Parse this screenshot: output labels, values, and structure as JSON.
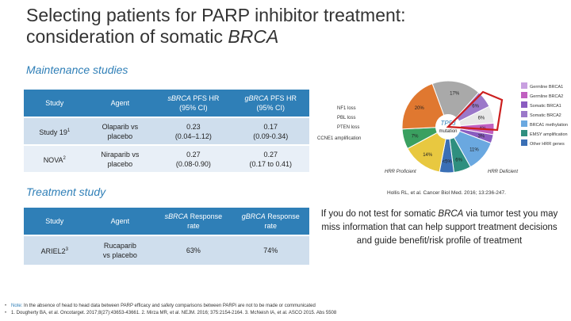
{
  "title": {
    "line1": "Selecting patients for PARP inhibitor treatment:",
    "line2_prefix": "consideration of somatic ",
    "line2_gene": "BRCA"
  },
  "maintenance": {
    "heading": "Maintenance studies",
    "headers": {
      "study": "Study",
      "agent": "Agent",
      "s_gene": "sBRCA",
      "s_rest": " PFS HR",
      "s_ci": "(95% CI)",
      "g_gene": "gBRCA",
      "g_rest": " PFS HR",
      "g_ci": "(95% CI)"
    },
    "rows": [
      {
        "study": "Study 19",
        "sup": "1",
        "agent1": "Olaparib vs",
        "agent2": "placebo",
        "s1": "0.23",
        "s2": "(0.04–1.12)",
        "g1": "0.17",
        "g2": "(0.09-0.34)"
      },
      {
        "study": "NOVA",
        "sup": "2",
        "agent1": "Niraparib vs",
        "agent2": "placebo",
        "s1": "0.27",
        "s2": "(0.08-0.90)",
        "g1": "0.27",
        "g2": "(0.17 to 0.41)"
      }
    ]
  },
  "treatment": {
    "heading": "Treatment study",
    "headers": {
      "study": "Study",
      "agent": "Agent",
      "s_gene": "sBRCA",
      "s_rest": " Response",
      "s_2": "rate",
      "g_gene": "gBRCA",
      "g_rest": " Response",
      "g_2": "rate"
    },
    "rows": [
      {
        "study": "ARIEL2",
        "sup": "3",
        "agent1": "Rucaparib",
        "agent2": "vs placebo",
        "s": "63%",
        "g": "74%"
      }
    ]
  },
  "pie": {
    "segments": [
      {
        "label": "17%",
        "color": "#a9a9a9",
        "value": 17
      },
      {
        "label": "6%",
        "color": "#9b78c9",
        "value": 6
      },
      {
        "label": "6%",
        "color": "#e8e8e8",
        "value": 6
      },
      {
        "label": "4%",
        "color": "#c060c0",
        "value": 4
      },
      {
        "label": "3%",
        "color": "#8a5cc0",
        "value": 3
      },
      {
        "label": "11%",
        "color": "#6aa8e0",
        "value": 11
      },
      {
        "label": "6%",
        "color": "#2f8f7f",
        "value": 6
      },
      {
        "label": "<5%",
        "color": "#3a6fb5",
        "value": 5
      },
      {
        "label": "14%",
        "color": "#e8c840",
        "value": 14
      },
      {
        "label": "7%",
        "color": "#3aa060",
        "value": 7
      },
      {
        "label": "20%",
        "color": "#e07830",
        "value": 20
      }
    ],
    "center_top": "TP53",
    "center_bottom": "mutation",
    "left_labels": [
      "NF1 loss",
      "PBL loss",
      "PTEN loss",
      "CCNE1 amplification"
    ],
    "bottom_left": "HRR Proficient",
    "bottom_right": "HRR Deficient",
    "legend": [
      "Germline BRCA1",
      "Germline BRCA2",
      "Somatic BRCA1",
      "Somatic BRCA2",
      "BRCA1 methylation",
      "EMSY amplification",
      "Other HRR genes"
    ]
  },
  "source": "Hollis RL, et al. Cancer Biol Med. 2016; 13:236-247.",
  "callout": {
    "prefix": "If you do not test for somatic ",
    "gene": "BRCA",
    "suffix": " via tumor test you may miss information that can help support treatment decisions and guide benefit/risk profile of treatment"
  },
  "notes": {
    "note_label": "Note:",
    "note_text": " In the absence of head to head data between PARP efficacy and safety comparisons between PARPi are not to be made or communicated",
    "refs": "1. Dougherty BA, et al. Oncotarget. 2017;8(27):43653-43661. 2. Mirza MR, et al. NEJM. 2016; 375:2154-2164. 3. McNeish IA, et al. ASCO 2015. Abs 5508"
  }
}
